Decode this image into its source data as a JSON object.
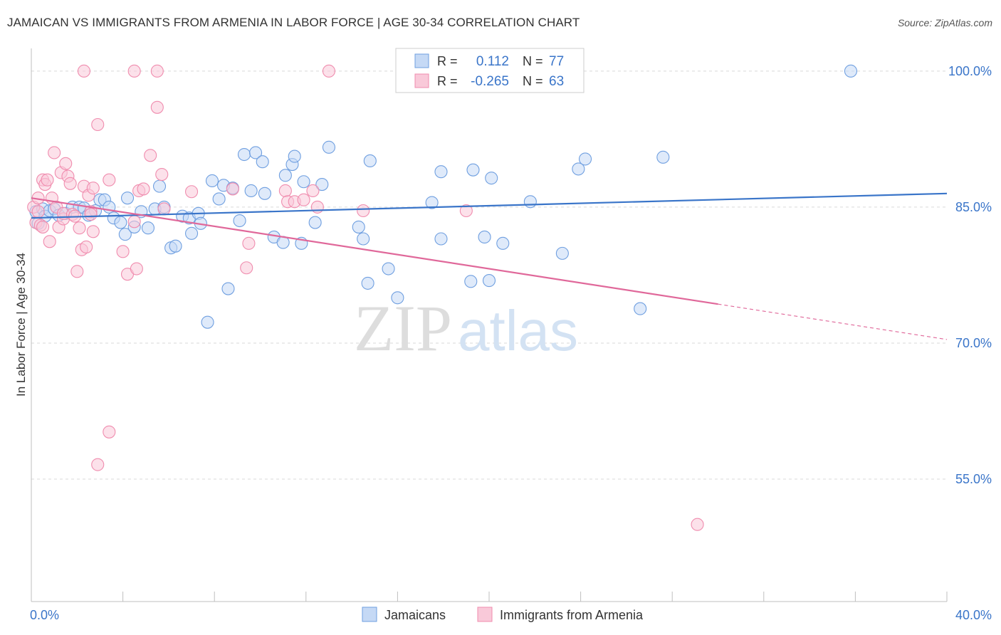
{
  "title": "JAMAICAN VS IMMIGRANTS FROM ARMENIA IN LABOR FORCE | AGE 30-34 CORRELATION CHART",
  "source": "Source: ZipAtlas.com",
  "watermark": {
    "zip": "ZIP",
    "atlas": "atlas"
  },
  "chart_data": {
    "type": "scatter",
    "title": "JAMAICAN VS IMMIGRANTS FROM ARMENIA IN LABOR FORCE | AGE 30-34 CORRELATION CHART",
    "ylabel": "In Labor Force | Age 30-34",
    "xlabel": "",
    "xlim": [
      0,
      40
    ],
    "ylim": [
      41.5,
      102.5
    ],
    "x_tick_labels": [
      {
        "value": 0,
        "label": "0.0%"
      },
      {
        "value": 40,
        "label": "40.0%"
      }
    ],
    "y_tick_labels": [
      {
        "value": 100,
        "label": "100.0%"
      },
      {
        "value": 85,
        "label": "85.0%"
      },
      {
        "value": 70,
        "label": "70.0%"
      },
      {
        "value": 55,
        "label": "55.0%"
      }
    ],
    "y_gridlines": [
      100,
      85,
      70,
      55
    ],
    "legend_position": "bottom",
    "stats_box": [
      {
        "r_label": "R =",
        "r_value": "0.112",
        "n_label": "N =",
        "n_value": "77"
      },
      {
        "r_label": "R =",
        "r_value": "-0.265",
        "n_label": "N =",
        "n_value": "63"
      }
    ],
    "series": [
      {
        "name": "Jamaicans",
        "color": "#6f9fe0",
        "fill": "#c5d9f5",
        "line_color": "#3a75c9",
        "trend": {
          "x0": 0,
          "y0": 83.8,
          "x1": 40,
          "y1": 86.5
        },
        "points": [
          [
            0.2,
            84.5
          ],
          [
            0.3,
            83.2
          ],
          [
            0.5,
            84.8
          ],
          [
            0.6,
            84.0
          ],
          [
            0.8,
            84.6
          ],
          [
            1.0,
            84.8
          ],
          [
            1.2,
            84.1
          ],
          [
            1.5,
            84.3
          ],
          [
            1.8,
            85.0
          ],
          [
            2.1,
            85.0
          ],
          [
            2.3,
            84.9
          ],
          [
            2.5,
            84.1
          ],
          [
            2.8,
            84.6
          ],
          [
            3.0,
            85.8
          ],
          [
            3.2,
            85.8
          ],
          [
            3.4,
            85.0
          ],
          [
            3.6,
            83.8
          ],
          [
            3.9,
            83.3
          ],
          [
            4.1,
            82.0
          ],
          [
            4.2,
            86.0
          ],
          [
            4.5,
            82.8
          ],
          [
            4.8,
            84.5
          ],
          [
            5.1,
            82.7
          ],
          [
            5.4,
            84.8
          ],
          [
            5.6,
            87.3
          ],
          [
            5.8,
            85.0
          ],
          [
            6.1,
            80.5
          ],
          [
            6.3,
            80.7
          ],
          [
            6.6,
            84.0
          ],
          [
            6.9,
            83.8
          ],
          [
            7.0,
            82.1
          ],
          [
            7.3,
            84.3
          ],
          [
            7.4,
            83.2
          ],
          [
            7.7,
            72.3
          ],
          [
            7.9,
            87.9
          ],
          [
            8.2,
            85.9
          ],
          [
            8.4,
            87.4
          ],
          [
            8.6,
            76.0
          ],
          [
            8.8,
            87.1
          ],
          [
            9.1,
            83.5
          ],
          [
            9.3,
            90.8
          ],
          [
            9.6,
            86.8
          ],
          [
            9.8,
            91.0
          ],
          [
            10.1,
            90.0
          ],
          [
            10.2,
            86.5
          ],
          [
            10.6,
            81.7
          ],
          [
            11.0,
            81.1
          ],
          [
            11.1,
            88.5
          ],
          [
            11.4,
            89.7
          ],
          [
            11.5,
            90.6
          ],
          [
            11.8,
            81.0
          ],
          [
            11.9,
            87.8
          ],
          [
            12.4,
            83.3
          ],
          [
            12.7,
            87.5
          ],
          [
            13.0,
            91.6
          ],
          [
            14.3,
            82.8
          ],
          [
            14.5,
            81.5
          ],
          [
            14.7,
            76.6
          ],
          [
            14.8,
            90.1
          ],
          [
            15.6,
            78.2
          ],
          [
            16.0,
            75.0
          ],
          [
            17.5,
            85.5
          ],
          [
            17.9,
            81.5
          ],
          [
            17.9,
            88.9
          ],
          [
            19.2,
            76.8
          ],
          [
            19.3,
            89.1
          ],
          [
            19.8,
            81.7
          ],
          [
            20.0,
            76.9
          ],
          [
            20.1,
            88.2
          ],
          [
            20.6,
            81.0
          ],
          [
            21.8,
            85.6
          ],
          [
            23.2,
            79.9
          ],
          [
            23.9,
            89.2
          ],
          [
            24.2,
            90.3
          ],
          [
            26.6,
            73.8
          ],
          [
            27.6,
            90.5
          ],
          [
            35.8,
            100.0
          ]
        ]
      },
      {
        "name": "Immigrants from Armenia",
        "color": "#f08cae",
        "fill": "#f9c9d9",
        "line_color": "#e0689a",
        "trend": {
          "x0": 0,
          "y0": 86.0,
          "x1": 30.0,
          "y1": 74.3
        },
        "trend_dash": {
          "x0": 30.0,
          "y0": 74.3,
          "x1": 40,
          "y1": 70.4
        },
        "points": [
          [
            0.1,
            85.0
          ],
          [
            0.2,
            83.3
          ],
          [
            0.3,
            84.5
          ],
          [
            0.4,
            83.0
          ],
          [
            0.5,
            82.8
          ],
          [
            0.5,
            88.0
          ],
          [
            0.6,
            87.5
          ],
          [
            0.7,
            88.0
          ],
          [
            0.8,
            81.2
          ],
          [
            0.9,
            86.0
          ],
          [
            1.0,
            91.0
          ],
          [
            1.1,
            85.0
          ],
          [
            1.2,
            82.8
          ],
          [
            1.3,
            88.8
          ],
          [
            1.4,
            83.7
          ],
          [
            1.4,
            84.3
          ],
          [
            1.5,
            89.8
          ],
          [
            1.6,
            88.4
          ],
          [
            1.7,
            87.6
          ],
          [
            1.8,
            84.2
          ],
          [
            1.9,
            84.0
          ],
          [
            2.0,
            77.9
          ],
          [
            2.1,
            82.7
          ],
          [
            2.2,
            80.3
          ],
          [
            2.3,
            87.3
          ],
          [
            2.3,
            100.0
          ],
          [
            2.4,
            80.6
          ],
          [
            2.5,
            86.3
          ],
          [
            2.6,
            84.5
          ],
          [
            2.6,
            84.2
          ],
          [
            2.7,
            82.3
          ],
          [
            2.7,
            87.1
          ],
          [
            2.9,
            94.1
          ],
          [
            2.9,
            56.6
          ],
          [
            3.4,
            60.2
          ],
          [
            3.4,
            88.0
          ],
          [
            4.0,
            80.1
          ],
          [
            4.2,
            77.6
          ],
          [
            4.5,
            83.4
          ],
          [
            4.5,
            100.0
          ],
          [
            4.6,
            78.2
          ],
          [
            4.7,
            86.8
          ],
          [
            4.9,
            87.0
          ],
          [
            5.2,
            90.7
          ],
          [
            5.5,
            96.0
          ],
          [
            5.5,
            100.0
          ],
          [
            5.7,
            88.6
          ],
          [
            5.8,
            84.8
          ],
          [
            7.0,
            86.7
          ],
          [
            8.8,
            87.0
          ],
          [
            9.4,
            78.3
          ],
          [
            9.5,
            81.0
          ],
          [
            11.1,
            86.8
          ],
          [
            11.2,
            85.6
          ],
          [
            11.5,
            85.6
          ],
          [
            11.9,
            85.8
          ],
          [
            12.3,
            86.8
          ],
          [
            12.5,
            85.0
          ],
          [
            13.0,
            100.0
          ],
          [
            14.5,
            84.6
          ],
          [
            19.0,
            84.6
          ],
          [
            29.1,
            50.0
          ],
          [
            0.3,
            86.0
          ]
        ]
      }
    ]
  }
}
